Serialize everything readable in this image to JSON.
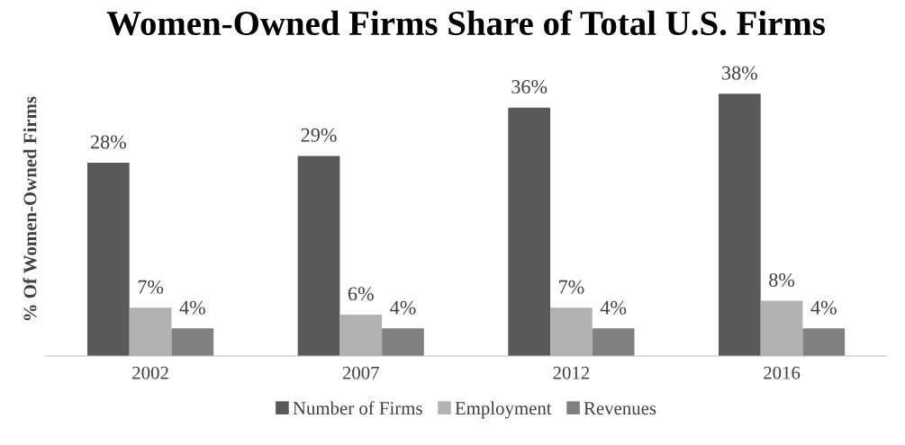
{
  "chart_data": {
    "type": "bar",
    "title": "Women-Owned Firms Share of Total U.S. Firms",
    "ylabel": "% Of Women-Owned Firms",
    "categories": [
      "2002",
      "2007",
      "2012",
      "2016"
    ],
    "series": [
      {
        "name": "Number of Firms",
        "color": "#595959",
        "values": [
          28,
          29,
          36,
          38
        ],
        "value_labels": [
          "28%",
          "29%",
          "36%",
          "38%"
        ]
      },
      {
        "name": "Employment",
        "color": "#b2b2b2",
        "values": [
          7,
          6,
          7,
          8
        ],
        "value_labels": [
          "7%",
          "6%",
          "7%",
          "8%"
        ]
      },
      {
        "name": "Revenues",
        "color": "#808080",
        "values": [
          4,
          4,
          4,
          4
        ],
        "value_labels": [
          "4%",
          "4%",
          "4%",
          "4%"
        ]
      }
    ],
    "legend": "bottom",
    "grid": false
  }
}
